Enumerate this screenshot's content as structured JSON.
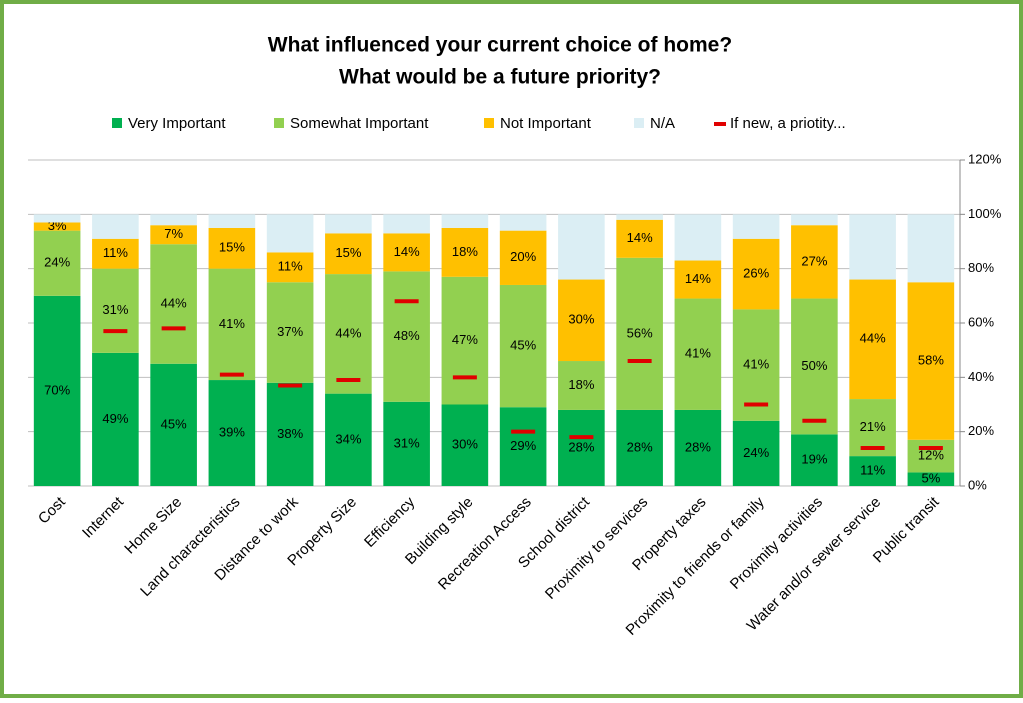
{
  "chart_data": {
    "type": "stacked_bar",
    "title": [
      "What influenced your current choice of home?",
      "What would be a future priority?"
    ],
    "categories": [
      "Cost",
      "Internet",
      "Home Size",
      "Land characteristics",
      "Distance to work",
      "Property Size",
      "Efficiency",
      "Building style",
      "Recreation Access",
      "School district",
      "Proximity to services",
      "Property taxes",
      "Proximity to friends or family",
      "Proximity activities",
      "Water and/or sewer service",
      "Public transit"
    ],
    "series": [
      {
        "name": "Very Important",
        "color": "#00b050",
        "values": [
          70,
          49,
          45,
          39,
          38,
          34,
          31,
          30,
          29,
          28,
          28,
          28,
          24,
          19,
          11,
          5
        ],
        "value_labels": [
          "70%",
          "49%",
          "45%",
          "39%",
          "38%",
          "34%",
          "31%",
          "30%",
          "29%",
          "28%",
          "28%",
          "28%",
          "24%",
          "19%",
          "11%",
          "5%"
        ]
      },
      {
        "name": "Somewhat Important",
        "color": "#92d050",
        "values": [
          24,
          31,
          44,
          41,
          37,
          44,
          48,
          47,
          45,
          18,
          56,
          41,
          41,
          50,
          21,
          12
        ],
        "value_labels": [
          "24%",
          "31%",
          "44%",
          "41%",
          "37%",
          "44%",
          "48%",
          "47%",
          "45%",
          "18%",
          "56%",
          "41%",
          "41%",
          "50%",
          "21%",
          "12%"
        ]
      },
      {
        "name": "Not Important",
        "color": "#ffc000",
        "values": [
          3,
          11,
          7,
          15,
          11,
          15,
          14,
          18,
          20,
          30,
          14,
          14,
          26,
          27,
          44,
          58
        ],
        "value_labels": [
          "3%",
          "11%",
          "7%",
          "15%",
          "11%",
          "15%",
          "14%",
          "18%",
          "20%",
          "30%",
          "14%",
          "14%",
          "26%",
          "27%",
          "44%",
          "58%"
        ]
      },
      {
        "name": "N/A",
        "color": "#dbeef4",
        "values": [
          3,
          9,
          4,
          5,
          14,
          7,
          7,
          5,
          6,
          24,
          2,
          17,
          9,
          4,
          24,
          25
        ]
      }
    ],
    "marker_series": {
      "name": "If new, a priotity...",
      "color": "#e00000",
      "values": [
        null,
        57,
        58,
        41,
        37,
        39,
        68,
        40,
        20,
        18,
        46,
        null,
        30,
        24,
        14,
        14
      ]
    },
    "ylim": [
      0,
      120
    ],
    "yticks": [
      {
        "value": 0,
        "label": "0%"
      },
      {
        "value": 20,
        "label": "20%"
      },
      {
        "value": 40,
        "label": "40%"
      },
      {
        "value": 60,
        "label": "60%"
      },
      {
        "value": 80,
        "label": "80%"
      },
      {
        "value": 100,
        "label": "100%"
      },
      {
        "value": 120,
        "label": "120%"
      }
    ],
    "grid": true,
    "legend": "top"
  }
}
